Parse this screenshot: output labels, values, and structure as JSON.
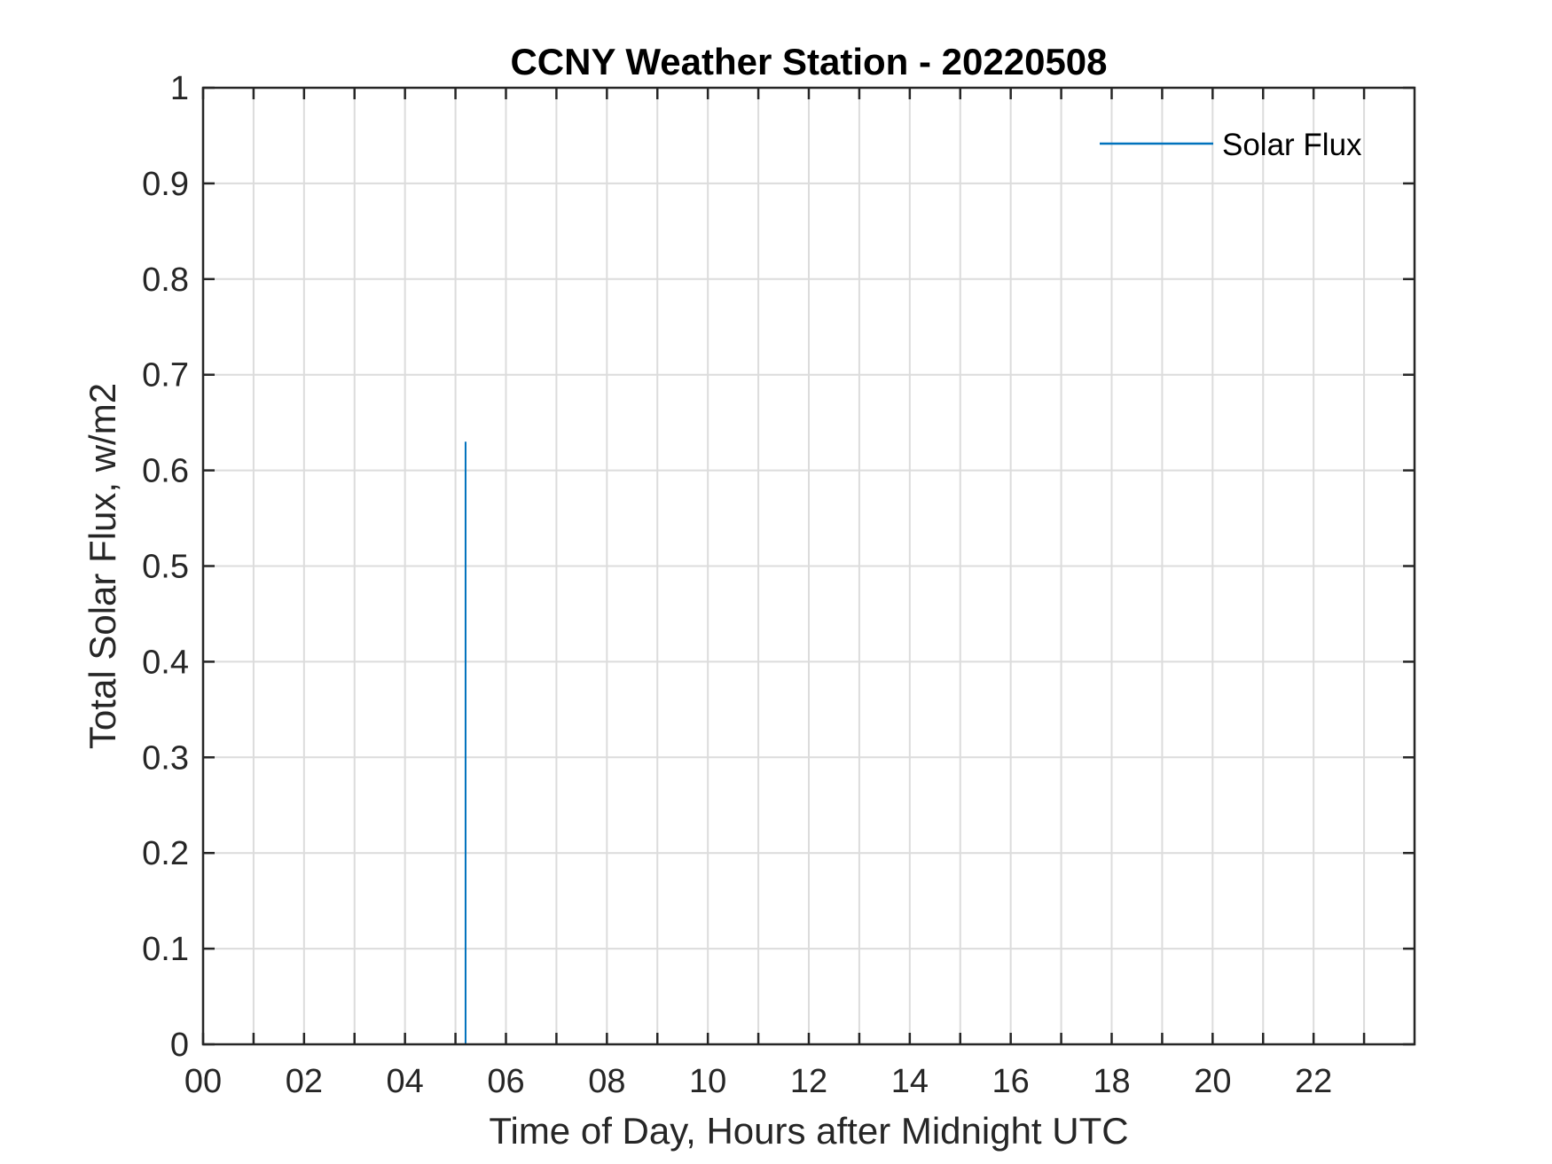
{
  "chart_data": {
    "type": "line",
    "title": "CCNY Weather Station - 20220508",
    "xlabel": "Time of Day, Hours after Midnight UTC",
    "ylabel": "Total Solar Flux, w/m2",
    "xlim": [
      0,
      24
    ],
    "ylim": [
      0,
      1
    ],
    "x_ticks": [
      0,
      1,
      2,
      3,
      4,
      5,
      6,
      7,
      8,
      9,
      10,
      11,
      12,
      13,
      14,
      15,
      16,
      17,
      18,
      19,
      20,
      21,
      22,
      23
    ],
    "x_tick_labels": [
      "00",
      "02",
      "04",
      "06",
      "08",
      "10",
      "12",
      "14",
      "16",
      "18",
      "20",
      "22"
    ],
    "x_tick_label_values": [
      0,
      2,
      4,
      6,
      8,
      10,
      12,
      14,
      16,
      18,
      20,
      22
    ],
    "y_ticks": [
      0,
      0.1,
      0.2,
      0.3,
      0.4,
      0.5,
      0.6,
      0.7,
      0.8,
      0.9,
      1
    ],
    "y_tick_labels": [
      "0",
      "0.1",
      "0.2",
      "0.3",
      "0.4",
      "0.5",
      "0.6",
      "0.7",
      "0.8",
      "0.9",
      "1"
    ],
    "grid": true,
    "legend": {
      "position": "top-right",
      "entries": [
        "Solar Flux"
      ]
    },
    "series": [
      {
        "name": "Solar Flux",
        "color": "#0072BD",
        "x": [
          5.2,
          5.2
        ],
        "y": [
          0,
          0.63
        ]
      }
    ]
  }
}
